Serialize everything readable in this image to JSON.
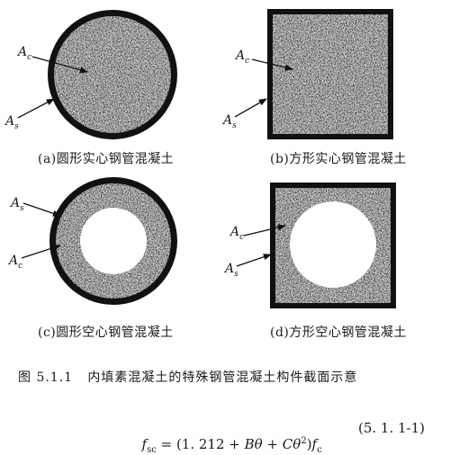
{
  "panels": [
    {
      "id": "a",
      "caption": "(a)圆形实心钢管混凝土"
    },
    {
      "id": "b",
      "caption": "(b)方形实心钢管混凝土"
    },
    {
      "id": "c",
      "caption": "(c)圆形空心钢管混凝土"
    },
    {
      "id": "d",
      "caption": "(d)方形空心钢管混凝土"
    }
  ],
  "labels": {
    "concrete_base": "A",
    "concrete_sub": "c",
    "steel_base": "A",
    "steel_sub": "s"
  },
  "figure_caption": "图 5.1.1   内填素混凝土的特殊钢管混凝土构件截面示意",
  "equation": {
    "lhs_base": "f",
    "lhs_sub": "sc",
    "rhs_prefix": " = (1. 212 + ",
    "B": "B",
    "theta": "θ",
    "plus": " + ",
    "C": "C",
    "theta2": "θ",
    "exp": "2",
    "rparen": ")",
    "fc_base": "f",
    "fc_sub": "c",
    "number": "(5. 1. 1-1)"
  }
}
